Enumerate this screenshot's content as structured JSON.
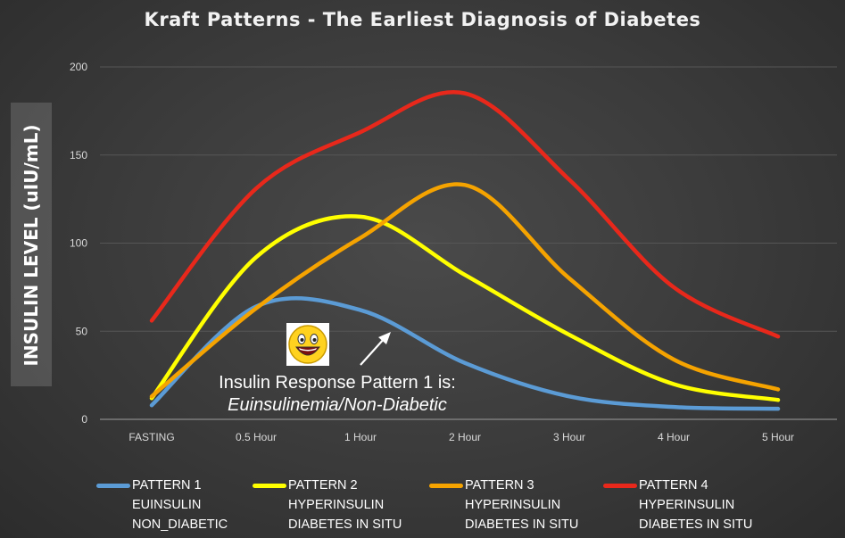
{
  "title": "Kraft Patterns - The Earliest Diagnosis of Diabetes",
  "annotation": {
    "line1": "Insulin Response Pattern 1 is:",
    "line2": "Euinsulinemia/Non-Diabetic"
  },
  "chart_data": {
    "type": "line",
    "title": "Kraft Patterns - The Earliest Diagnosis of Diabetes",
    "xlabel": "",
    "ylabel": "INSULIN LEVEL (uIU/mL)",
    "categories": [
      "FASTING",
      "0.5 Hour",
      "1 Hour",
      "2 Hour",
      "3 Hour",
      "4 Hour",
      "5 Hour"
    ],
    "yticks": [
      0,
      50,
      100,
      150,
      200
    ],
    "ylim": [
      0,
      200
    ],
    "grid": true,
    "legend_position": "bottom",
    "series": [
      {
        "name": "PATTERN 1",
        "line2": "EUINSULIN",
        "line3": "NON_DIABETIC",
        "color": "#5b9bd5",
        "values": [
          8,
          64,
          62,
          32,
          13,
          7,
          6
        ]
      },
      {
        "name": "PATTERN 2",
        "line2": "HYPERINSULIN",
        "line3": "DIABETES IN SITU",
        "color": "#ffff00",
        "values": [
          12,
          92,
          115,
          82,
          48,
          20,
          11
        ]
      },
      {
        "name": "PATTERN 3",
        "line2": "HYPERINSULIN",
        "line3": "DIABETES IN SITU",
        "color": "#f5a300",
        "values": [
          13,
          63,
          103,
          133,
          80,
          34,
          17
        ]
      },
      {
        "name": "PATTERN 4",
        "line2": "HYPERINSULIN",
        "line3": "DIABETES IN SITU",
        "color": "#e8281b",
        "values": [
          56,
          131,
          163,
          185,
          136,
          75,
          47
        ]
      }
    ]
  }
}
